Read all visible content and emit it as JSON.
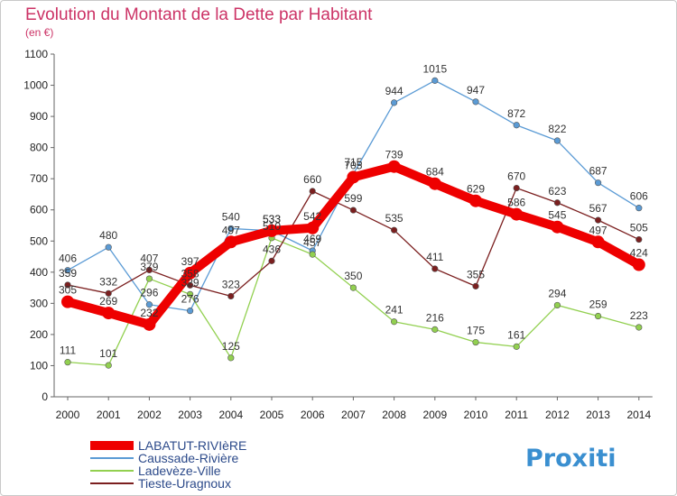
{
  "chart_data": {
    "type": "line",
    "title": "Evolution du Montant de la Dette par Habitant",
    "subtitle": "(en €)",
    "x": [
      "2000",
      "2001",
      "2002",
      "2003",
      "2004",
      "2005",
      "2006",
      "2007",
      "2008",
      "2009",
      "2010",
      "2011",
      "2012",
      "2013",
      "2014"
    ],
    "yticks": [
      "0",
      "100",
      "200",
      "300",
      "400",
      "500",
      "600",
      "700",
      "800",
      "900",
      "1000",
      "1100"
    ],
    "ylim": [
      0,
      1100
    ],
    "grid": false,
    "legend_position": "bottom-left",
    "series": [
      {
        "name": "LABATUT-RIVIèRE",
        "color": "#ee0000",
        "values": [
          305,
          269,
          232,
          397,
          497,
          533,
          542,
          705,
          739,
          684,
          629,
          586,
          545,
          497,
          424
        ]
      },
      {
        "name": "Caussade-Rivière",
        "color": "#5b9bd5",
        "values": [
          406,
          480,
          296,
          276,
          540,
          533,
          469,
          715,
          944,
          1015,
          947,
          872,
          822,
          687,
          606
        ]
      },
      {
        "name": "Ladevèze-Ville",
        "color": "#92d050",
        "values": [
          111,
          101,
          379,
          329,
          125,
          510,
          457,
          350,
          241,
          216,
          175,
          161,
          294,
          259,
          223
        ]
      },
      {
        "name": "Tieste-Uragnoux",
        "color": "#7b1f1f",
        "values": [
          359,
          332,
          407,
          358,
          323,
          436,
          660,
          599,
          535,
          411,
          355,
          670,
          623,
          567,
          505
        ]
      }
    ],
    "data_labels": [
      [
        "305",
        "269",
        "232",
        "397",
        "497",
        "533",
        "542",
        "705",
        "739",
        "684",
        "629",
        "586",
        "545",
        "497",
        "424"
      ],
      [
        "406",
        "480",
        "296",
        "276",
        "540",
        "533",
        "469",
        "715",
        "944",
        "1015",
        "947",
        "872",
        "822",
        "687",
        "606"
      ],
      [
        "111",
        "101",
        "379",
        "329",
        "125",
        "510",
        "457",
        "350",
        "241",
        "216",
        "175",
        "161",
        "294",
        "259",
        "223"
      ],
      [
        "359",
        "332",
        "407",
        "358",
        "323",
        "436",
        "660",
        "599",
        "535",
        "411",
        "355",
        "670",
        "623",
        "567",
        "505"
      ]
    ]
  },
  "logo": {
    "text": "Proxiti"
  }
}
